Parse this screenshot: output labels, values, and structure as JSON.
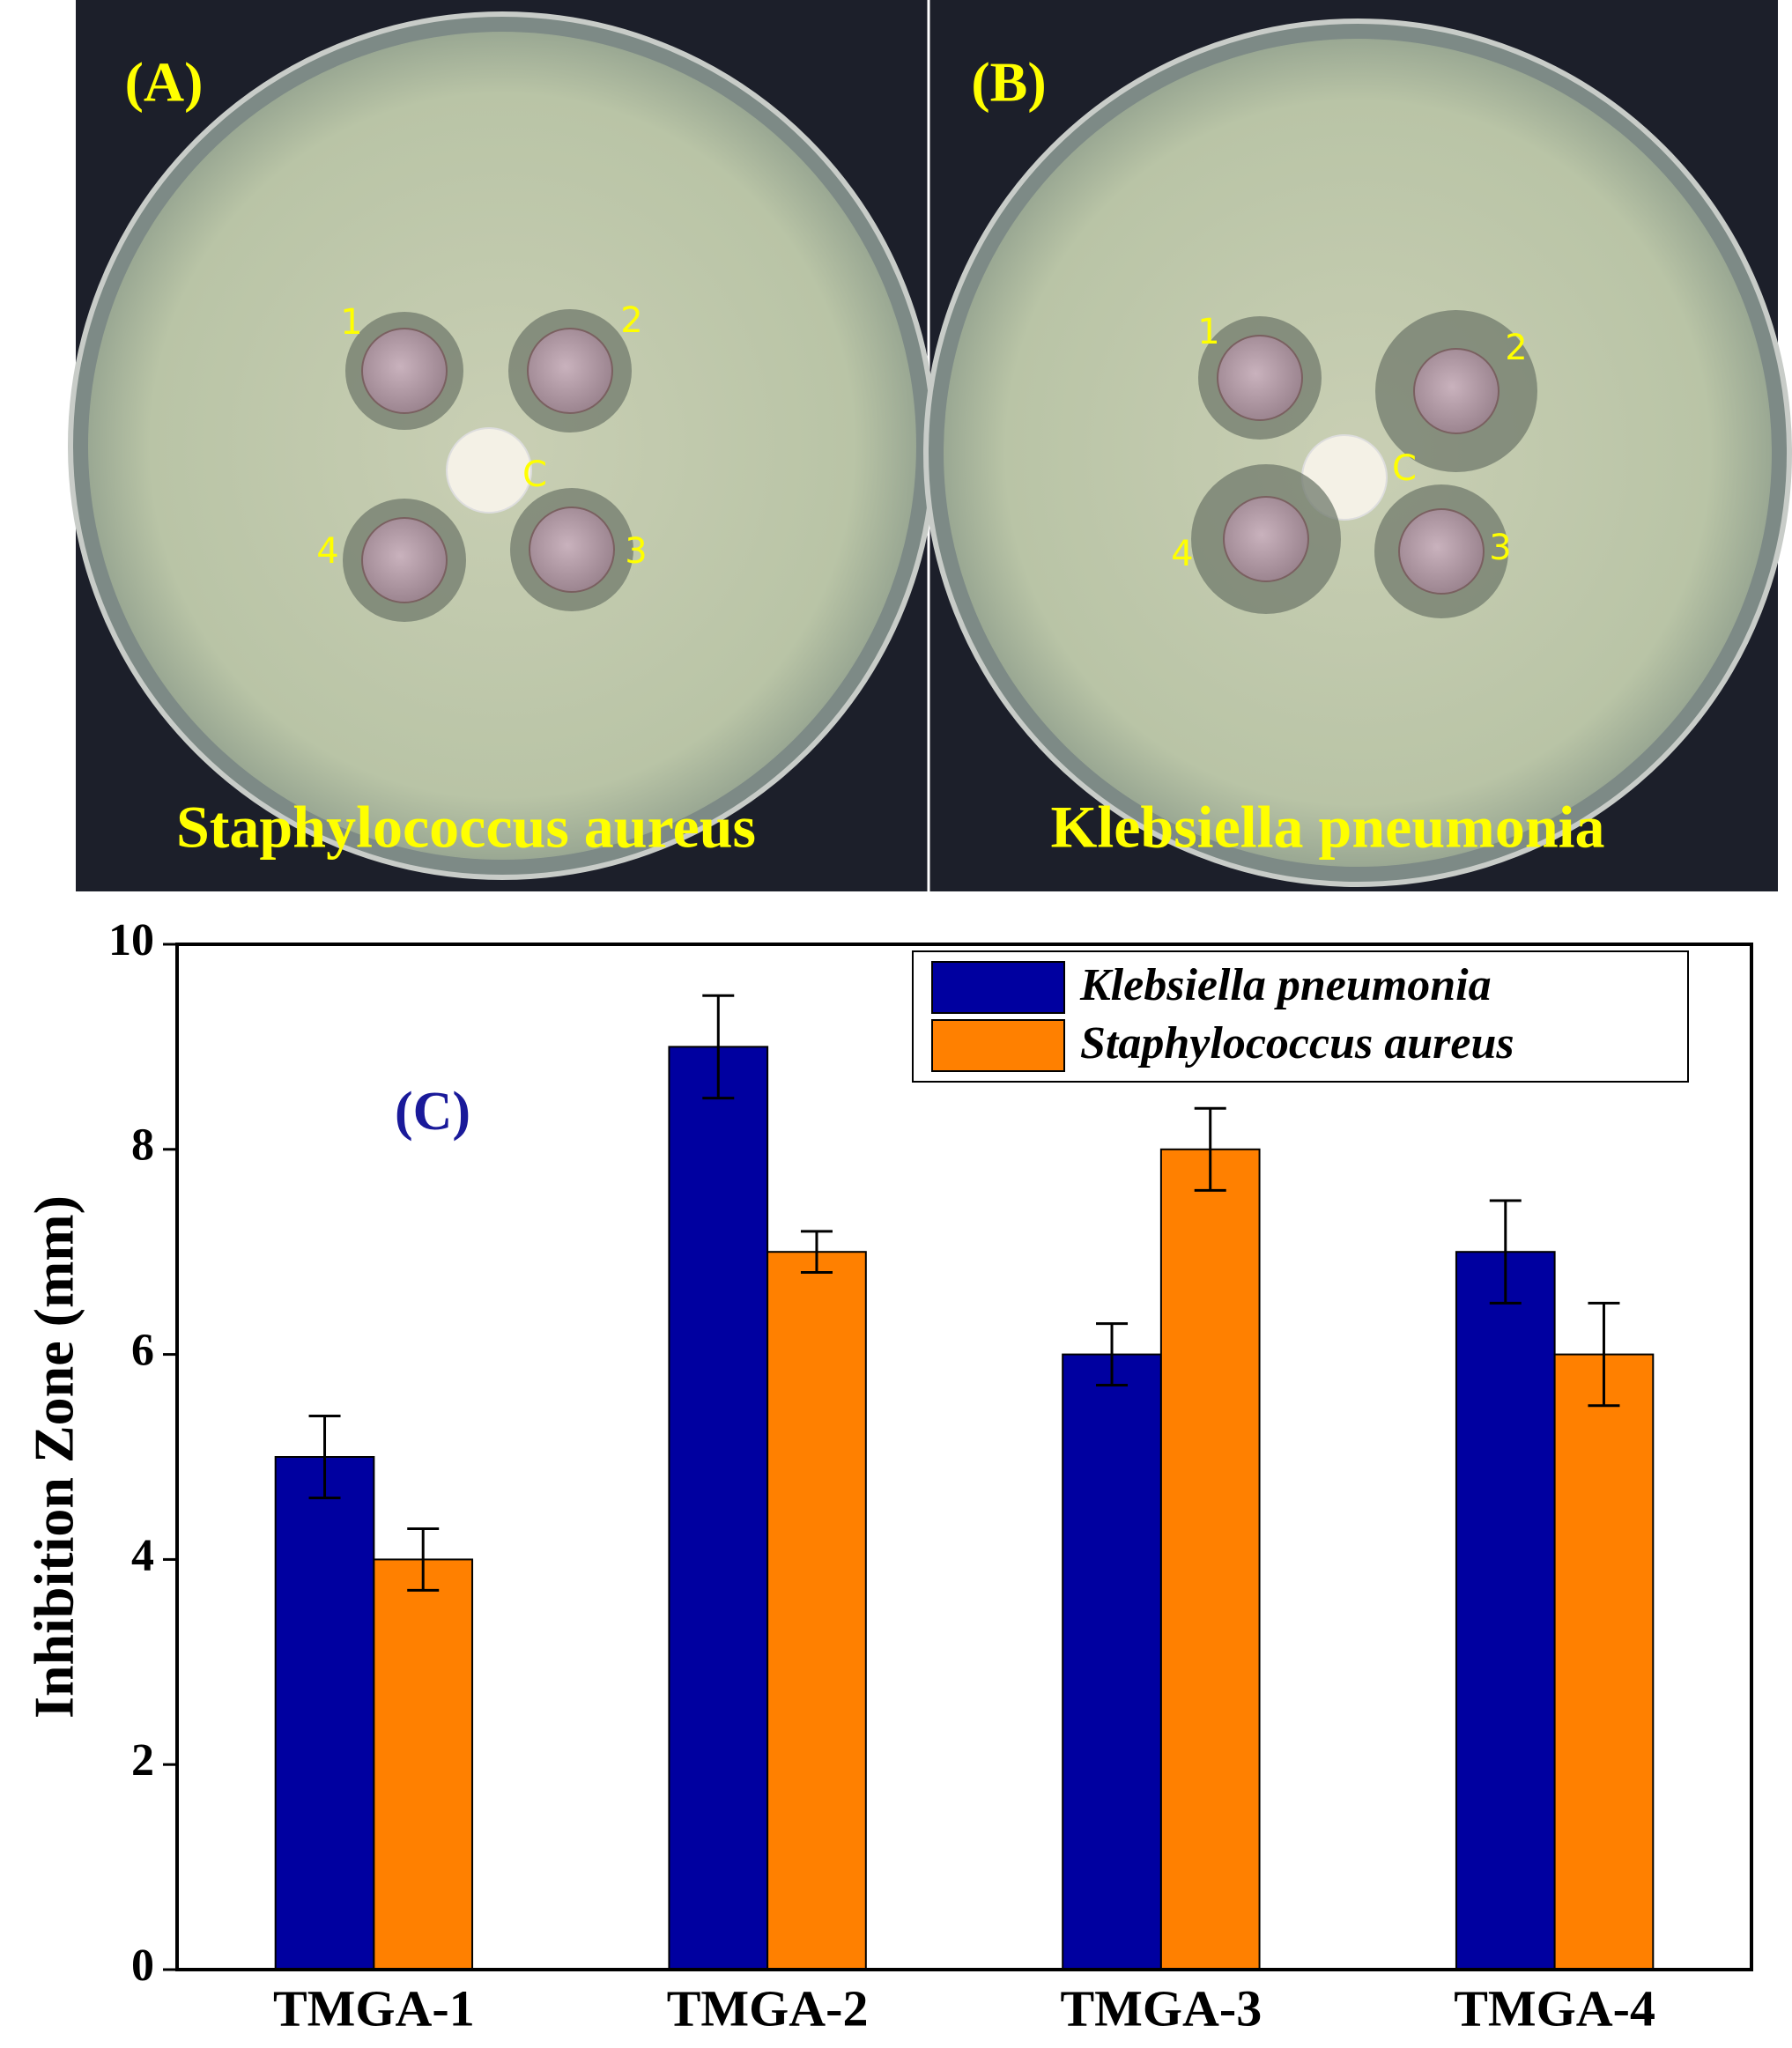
{
  "panels": [
    {
      "label": "(A)",
      "caption": "Staphylococcus aureus",
      "discs": [
        "1",
        "2",
        "C",
        "4",
        "3"
      ]
    },
    {
      "label": "(B)",
      "caption": "Klebsiella pneumonia",
      "discs": [
        "1",
        "2",
        "C",
        "4",
        "3"
      ]
    }
  ],
  "chart_data": {
    "type": "bar",
    "annotation": "(C)",
    "ylabel": "Inhibition Zone (mm)",
    "categories": [
      "TMGA-1",
      "TMGA-2",
      "TMGA-3",
      "TMGA-4"
    ],
    "series": [
      {
        "name": "Klebsiella pneumonia",
        "color": "#0000a0",
        "values": [
          5,
          9,
          6,
          7
        ],
        "errors": [
          0.4,
          0.5,
          0.3,
          0.5
        ]
      },
      {
        "name": "Staphylococcus aureus",
        "color": "#ff8000",
        "values": [
          4,
          7,
          8,
          6
        ],
        "errors": [
          0.3,
          0.2,
          0.4,
          0.5
        ]
      }
    ],
    "ylim": [
      0,
      10
    ],
    "yticks": [
      0,
      2,
      4,
      6,
      8,
      10
    ],
    "legend": "upper right"
  }
}
